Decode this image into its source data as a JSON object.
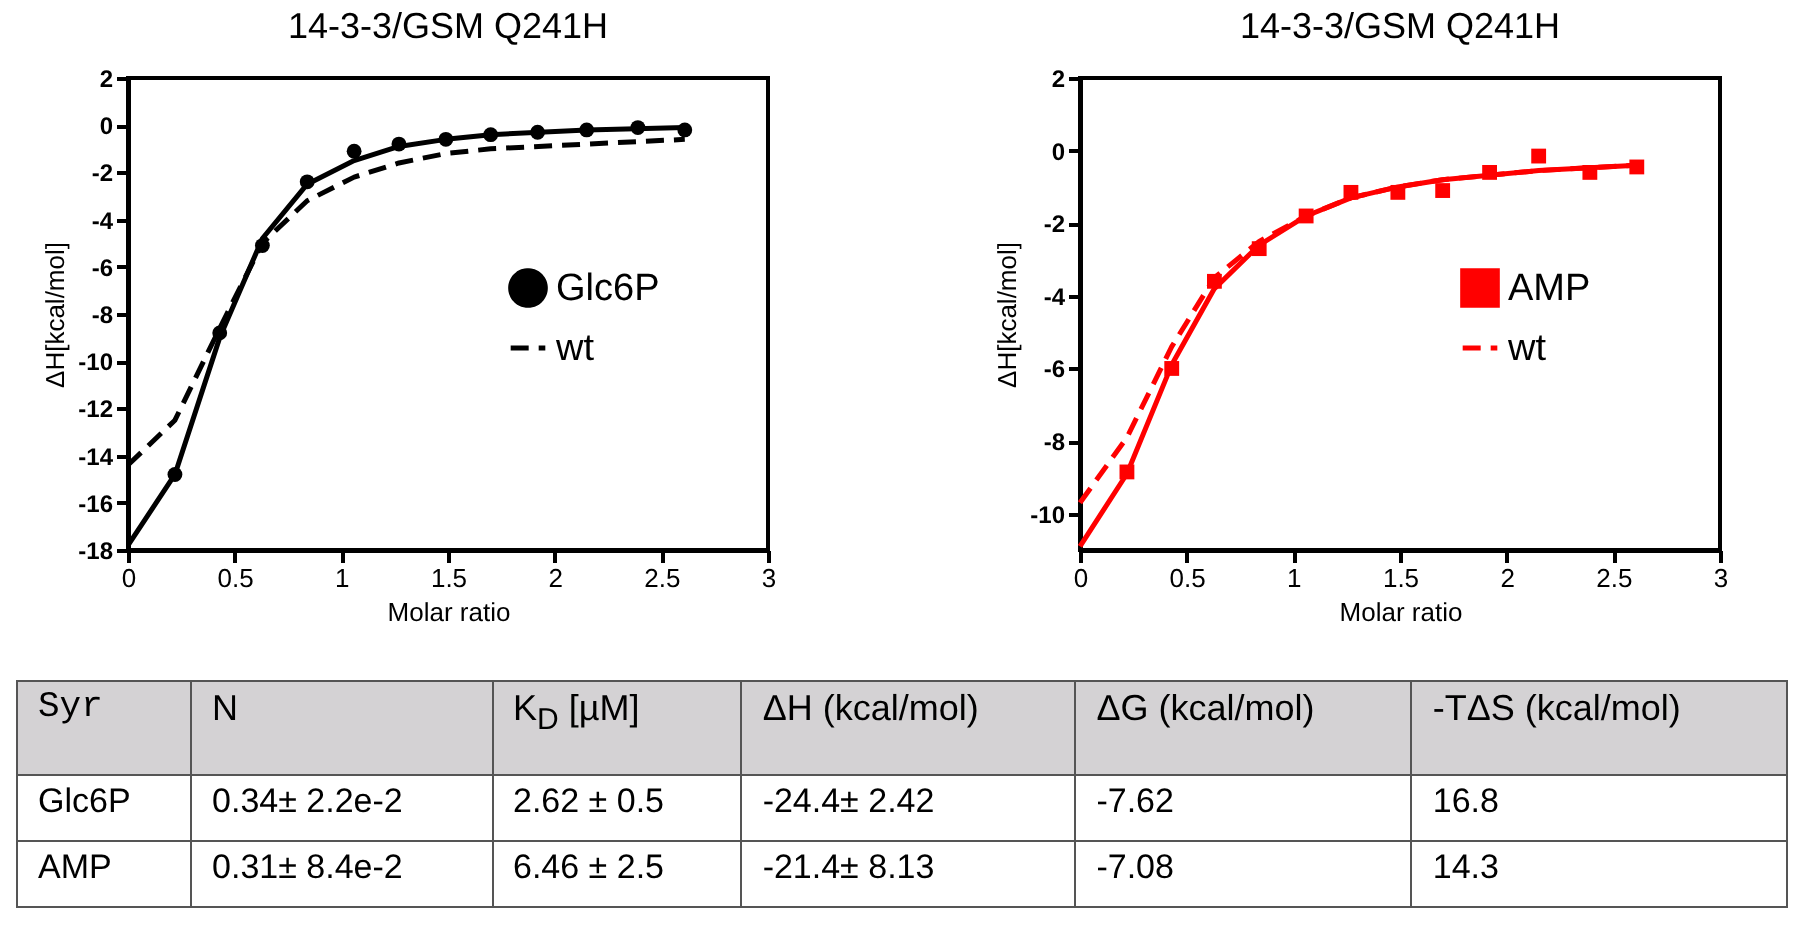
{
  "chart_data": [
    {
      "type": "line",
      "title": "14-3-3/GSM Q241H",
      "xlabel": "Molar ratio",
      "ylabel": "ΔH[kcal/mol]",
      "xlim": [
        0,
        3
      ],
      "xticks": [
        0,
        0.5,
        1,
        1.5,
        2,
        2.5,
        3
      ],
      "ylim": [
        -18,
        2
      ],
      "yticks": [
        -18,
        -16,
        -14,
        -12,
        -10,
        -8,
        -6,
        -4,
        -2,
        0,
        2
      ],
      "legend": "right",
      "series": [
        {
          "name": "Glc6P",
          "type": "scatter",
          "marker": "circle",
          "color": "#000000",
          "x": [
            0.22,
            0.43,
            0.63,
            0.84,
            1.06,
            1.27,
            1.49,
            1.7,
            1.92,
            2.15,
            2.39,
            2.61
          ],
          "values": [
            -14.8,
            -8.8,
            -5.1,
            -2.4,
            -1.1,
            -0.8,
            -0.6,
            -0.4,
            -0.3,
            -0.2,
            -0.1,
            -0.2
          ]
        },
        {
          "type": "line",
          "line_style": "solid",
          "color": "#000000",
          "x": [
            0,
            0.22,
            0.43,
            0.63,
            0.84,
            1.06,
            1.27,
            1.49,
            1.7,
            2.15,
            2.61
          ],
          "values": [
            -17.8,
            -14.8,
            -9.0,
            -4.8,
            -2.5,
            -1.5,
            -0.9,
            -0.6,
            -0.4,
            -0.2,
            -0.1
          ]
        },
        {
          "name": "wt",
          "type": "line",
          "line_style": "dashed",
          "color": "#000000",
          "x": [
            0,
            0.22,
            0.43,
            0.63,
            0.84,
            1.06,
            1.27,
            1.49,
            1.7,
            2.15,
            2.61
          ],
          "values": [
            -14.4,
            -12.5,
            -8.6,
            -5.0,
            -3.2,
            -2.2,
            -1.6,
            -1.2,
            -1.0,
            -0.8,
            -0.6
          ]
        }
      ]
    },
    {
      "type": "line",
      "title": "14-3-3/GSM Q241H",
      "xlabel": "Molar ratio",
      "ylabel": "ΔH[kcal/mol]",
      "xlim": [
        0,
        3
      ],
      "xticks": [
        0,
        0.5,
        1,
        1.5,
        2,
        2.5,
        3
      ],
      "ylim": [
        -11,
        2
      ],
      "yticks": [
        -10,
        -8,
        -6,
        -4,
        -2,
        0,
        2
      ],
      "legend": "right",
      "series": [
        {
          "name": "AMP",
          "type": "scatter",
          "marker": "square",
          "color": "#ff0000",
          "x": [
            0.22,
            0.43,
            0.63,
            0.84,
            1.06,
            1.27,
            1.49,
            1.7,
            1.92,
            2.15,
            2.39,
            2.61
          ],
          "values": [
            -8.85,
            -6.0,
            -3.6,
            -2.7,
            -1.8,
            -1.15,
            -1.15,
            -1.1,
            -0.6,
            -0.15,
            -0.6,
            -0.45
          ]
        },
        {
          "type": "line",
          "line_style": "solid",
          "color": "#ff0000",
          "x": [
            0,
            0.22,
            0.43,
            0.63,
            0.84,
            1.06,
            1.27,
            1.49,
            1.7,
            2.15,
            2.61
          ],
          "values": [
            -10.9,
            -8.9,
            -5.9,
            -3.8,
            -2.6,
            -1.8,
            -1.3,
            -1.0,
            -0.8,
            -0.55,
            -0.4
          ]
        },
        {
          "name": "wt",
          "type": "line",
          "line_style": "dashed",
          "color": "#ff0000",
          "x": [
            0,
            0.22,
            0.43,
            0.63,
            0.84,
            1.06,
            1.27,
            1.49,
            1.7,
            2.15,
            2.61
          ],
          "values": [
            -9.7,
            -7.9,
            -5.4,
            -3.5,
            -2.5,
            -1.8,
            -1.3,
            -1.0,
            -0.8,
            -0.55,
            -0.4
          ]
        }
      ]
    },
    {
      "type": "other",
      "annotations": [
        "Syr",
        "N",
        "K$_{D}$ [µM]",
        "ΔH (kcal/mol)",
        "ΔG (kcal/mol)",
        "-TΔS (kcal/mol)",
        "Glc6P",
        "0.34± 2.2e-2",
        "2.62 ± 0.5",
        "-24.4± 2.42",
        "-7.62",
        "16.8",
        "AMP",
        "0.31± 8.4e-2",
        "6.46 ± 2.5",
        "-21.4± 8.13",
        "-7.08",
        "14.3"
      ]
    }
  ]
}
